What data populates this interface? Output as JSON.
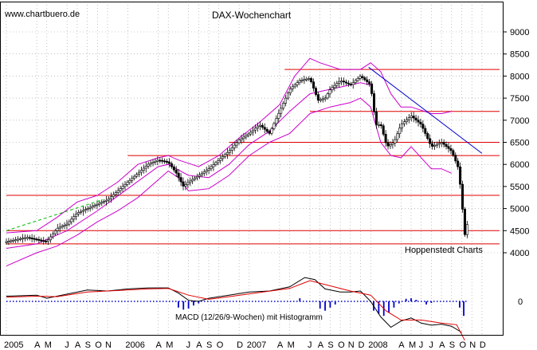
{
  "header": {
    "watermark": "www.chartbuero.de",
    "title": "DAX-Wochenchart"
  },
  "footer": {
    "source": "Hoppenstedt Charts",
    "macd_label": "MACD (12/26/9-Wochen) mit Histogramm"
  },
  "colors": {
    "price": "#000000",
    "bollinger": "#cc00cc",
    "support_resistance": "#e00000",
    "trendline": "#0000cc",
    "uptrend_dashed": "#00bb00",
    "macd": "#000000",
    "signal": "#e00000",
    "histogram": "#0000cc",
    "grid": "#999999"
  },
  "chart_data": [
    {
      "type": "candlestick",
      "title": "DAX-Wochenchart",
      "y_axis_position": "right",
      "ylim": [
        3500,
        9000
      ],
      "y_ticks": [
        4000,
        4500,
        5000,
        5500,
        6000,
        6500,
        7000,
        7500,
        8000,
        8500,
        9000
      ],
      "x_ticks": [
        {
          "label": "2005",
          "t": 0
        },
        {
          "label": "A",
          "t": 3
        },
        {
          "label": "M",
          "t": 4
        },
        {
          "label": "J",
          "t": 6
        },
        {
          "label": "A",
          "t": 7
        },
        {
          "label": "S",
          "t": 8
        },
        {
          "label": "O",
          "t": 9
        },
        {
          "label": "N",
          "t": 10
        },
        {
          "label": "2006",
          "t": 12
        },
        {
          "label": "A",
          "t": 15
        },
        {
          "label": "M",
          "t": 16
        },
        {
          "label": "J",
          "t": 18
        },
        {
          "label": "A",
          "t": 19
        },
        {
          "label": "S",
          "t": 20
        },
        {
          "label": "O",
          "t": 21
        },
        {
          "label": "D",
          "t": 23
        },
        {
          "label": "2007",
          "t": 24
        },
        {
          "label": "A",
          "t": 27
        },
        {
          "label": "M",
          "t": 28
        },
        {
          "label": "J",
          "t": 30
        },
        {
          "label": "A",
          "t": 31
        },
        {
          "label": "S",
          "t": 32
        },
        {
          "label": "O",
          "t": 33
        },
        {
          "label": "N",
          "t": 34
        },
        {
          "label": "D",
          "t": 35
        },
        {
          "label": "2008",
          "t": 36
        },
        {
          "label": "A",
          "t": 39
        },
        {
          "label": "M",
          "t": 40
        },
        {
          "label": "J",
          "t": 41
        },
        {
          "label": "J",
          "t": 42
        },
        {
          "label": "A",
          "t": 43
        },
        {
          "label": "S",
          "t": 44
        },
        {
          "label": "O",
          "t": 45
        },
        {
          "label": "N",
          "t": 46
        },
        {
          "label": "D",
          "t": 47
        }
      ],
      "price": [
        {
          "t": 0,
          "v": 4250
        },
        {
          "t": 1,
          "v": 4300
        },
        {
          "t": 2,
          "v": 4350
        },
        {
          "t": 3,
          "v": 4300
        },
        {
          "t": 4,
          "v": 4250
        },
        {
          "t": 5,
          "v": 4550
        },
        {
          "t": 6,
          "v": 4650
        },
        {
          "t": 7,
          "v": 4900
        },
        {
          "t": 8,
          "v": 5000
        },
        {
          "t": 9,
          "v": 5100
        },
        {
          "t": 10,
          "v": 5200
        },
        {
          "t": 11,
          "v": 5400
        },
        {
          "t": 12,
          "v": 5600
        },
        {
          "t": 13,
          "v": 5800
        },
        {
          "t": 14,
          "v": 6000
        },
        {
          "t": 15,
          "v": 6100
        },
        {
          "t": 16,
          "v": 6050
        },
        {
          "t": 16.8,
          "v": 5800
        },
        {
          "t": 17.5,
          "v": 5500
        },
        {
          "t": 18,
          "v": 5600
        },
        {
          "t": 19,
          "v": 5750
        },
        {
          "t": 20,
          "v": 5900
        },
        {
          "t": 21,
          "v": 6100
        },
        {
          "t": 22,
          "v": 6300
        },
        {
          "t": 23,
          "v": 6550
        },
        {
          "t": 24,
          "v": 6700
        },
        {
          "t": 25,
          "v": 6900
        },
        {
          "t": 26,
          "v": 6700
        },
        {
          "t": 27,
          "v": 7200
        },
        {
          "t": 28,
          "v": 7700
        },
        {
          "t": 29,
          "v": 7900
        },
        {
          "t": 30,
          "v": 7950
        },
        {
          "t": 30.8,
          "v": 7450
        },
        {
          "t": 31.5,
          "v": 7500
        },
        {
          "t": 32,
          "v": 7700
        },
        {
          "t": 33,
          "v": 7900
        },
        {
          "t": 34,
          "v": 7800
        },
        {
          "t": 35,
          "v": 8000
        },
        {
          "t": 36,
          "v": 7800
        },
        {
          "t": 36.5,
          "v": 6900
        },
        {
          "t": 37,
          "v": 6900
        },
        {
          "t": 37.6,
          "v": 6400
        },
        {
          "t": 38.3,
          "v": 6500
        },
        {
          "t": 39,
          "v": 6900
        },
        {
          "t": 40,
          "v": 7100
        },
        {
          "t": 41,
          "v": 6900
        },
        {
          "t": 42,
          "v": 6400
        },
        {
          "t": 43,
          "v": 6500
        },
        {
          "t": 44,
          "v": 6300
        },
        {
          "t": 44.7,
          "v": 5900
        },
        {
          "t": 45.0,
          "v": 5200
        },
        {
          "t": 45.3,
          "v": 4400
        },
        {
          "t": 45.6,
          "v": 4700
        }
      ],
      "bollinger_upper": [
        {
          "t": 0,
          "v": 4450
        },
        {
          "t": 3,
          "v": 4500
        },
        {
          "t": 5,
          "v": 4800
        },
        {
          "t": 7,
          "v": 5150
        },
        {
          "t": 9,
          "v": 5300
        },
        {
          "t": 11,
          "v": 5600
        },
        {
          "t": 13,
          "v": 6000
        },
        {
          "t": 15,
          "v": 6150
        },
        {
          "t": 16,
          "v": 6200
        },
        {
          "t": 17,
          "v": 6100
        },
        {
          "t": 19,
          "v": 5950
        },
        {
          "t": 21,
          "v": 6200
        },
        {
          "t": 23,
          "v": 6600
        },
        {
          "t": 25,
          "v": 6950
        },
        {
          "t": 27,
          "v": 7350
        },
        {
          "t": 28.5,
          "v": 8000
        },
        {
          "t": 30,
          "v": 8400
        },
        {
          "t": 31,
          "v": 8300
        },
        {
          "t": 33,
          "v": 8150
        },
        {
          "t": 35,
          "v": 8150
        },
        {
          "t": 36,
          "v": 8300
        },
        {
          "t": 37,
          "v": 8100
        },
        {
          "t": 38,
          "v": 7600
        },
        {
          "t": 39,
          "v": 7300
        },
        {
          "t": 40,
          "v": 7300
        },
        {
          "t": 42,
          "v": 7150
        },
        {
          "t": 43,
          "v": 7150
        },
        {
          "t": 44,
          "v": 7200
        }
      ],
      "bollinger_lower": [
        {
          "t": 0,
          "v": 3700
        },
        {
          "t": 3,
          "v": 4000
        },
        {
          "t": 5,
          "v": 4150
        },
        {
          "t": 7,
          "v": 4400
        },
        {
          "t": 9,
          "v": 4700
        },
        {
          "t": 11,
          "v": 4950
        },
        {
          "t": 13,
          "v": 5250
        },
        {
          "t": 15,
          "v": 5650
        },
        {
          "t": 16,
          "v": 5850
        },
        {
          "t": 17,
          "v": 5700
        },
        {
          "t": 18,
          "v": 5400
        },
        {
          "t": 20,
          "v": 5450
        },
        {
          "t": 22,
          "v": 5750
        },
        {
          "t": 24,
          "v": 6200
        },
        {
          "t": 26,
          "v": 6500
        },
        {
          "t": 28,
          "v": 6700
        },
        {
          "t": 30,
          "v": 7150
        },
        {
          "t": 32,
          "v": 7300
        },
        {
          "t": 34,
          "v": 7400
        },
        {
          "t": 35,
          "v": 7500
        },
        {
          "t": 36,
          "v": 7300
        },
        {
          "t": 37,
          "v": 6500
        },
        {
          "t": 38,
          "v": 6200
        },
        {
          "t": 39,
          "v": 6150
        },
        {
          "t": 40,
          "v": 6400
        },
        {
          "t": 41,
          "v": 6150
        },
        {
          "t": 42,
          "v": 5900
        },
        {
          "t": 43,
          "v": 5900
        },
        {
          "t": 44,
          "v": 5800
        }
      ],
      "bollinger_mid": [
        {
          "t": 0,
          "v": 4100
        },
        {
          "t": 3,
          "v": 4200
        },
        {
          "t": 6,
          "v": 4500
        },
        {
          "t": 9,
          "v": 4950
        },
        {
          "t": 12,
          "v": 5450
        },
        {
          "t": 15,
          "v": 5950
        },
        {
          "t": 16,
          "v": 6000
        },
        {
          "t": 18,
          "v": 5750
        },
        {
          "t": 20,
          "v": 5700
        },
        {
          "t": 22,
          "v": 6000
        },
        {
          "t": 24,
          "v": 6450
        },
        {
          "t": 26,
          "v": 6750
        },
        {
          "t": 28,
          "v": 7200
        },
        {
          "t": 30,
          "v": 7600
        },
        {
          "t": 32,
          "v": 7700
        },
        {
          "t": 35,
          "v": 7850
        },
        {
          "t": 36,
          "v": 7800
        }
      ],
      "horizontal_levels": [
        {
          "v": 8150,
          "t_start": 27.5
        },
        {
          "v": 7200,
          "t_start": 30
        },
        {
          "v": 6500,
          "t_start": 22
        },
        {
          "v": 6200,
          "t_start": 12
        },
        {
          "v": 5300,
          "t_start": 0
        },
        {
          "v": 4500,
          "t_start": 0
        },
        {
          "v": 4200,
          "t_start": 0
        }
      ],
      "trendline": [
        {
          "t": 35.8,
          "v": 8200
        },
        {
          "t": 47,
          "v": 6250
        }
      ],
      "uptrend_dashed": [
        {
          "t": 0,
          "v": 4500
        },
        {
          "t": 9.5,
          "v": 5200
        }
      ]
    },
    {
      "type": "line",
      "title": "MACD (12/26/9-Wochen) mit Histogramm",
      "y_axis_position": "right",
      "ylim": [
        -8,
        6
      ],
      "y_ticks": [
        0
      ],
      "series": [
        {
          "role": "macd",
          "points": [
            {
              "t": 0,
              "v": 1
            },
            {
              "t": 3,
              "v": 1.2
            },
            {
              "t": 4,
              "v": 0.6
            },
            {
              "t": 6,
              "v": 1.4
            },
            {
              "t": 8,
              "v": 2.2
            },
            {
              "t": 10,
              "v": 2.0
            },
            {
              "t": 12,
              "v": 2.4
            },
            {
              "t": 14,
              "v": 2.6
            },
            {
              "t": 16,
              "v": 2.6
            },
            {
              "t": 17,
              "v": 1.6
            },
            {
              "t": 18,
              "v": 0.2
            },
            {
              "t": 19,
              "v": 0
            },
            {
              "t": 20,
              "v": 0.6
            },
            {
              "t": 22,
              "v": 1.2
            },
            {
              "t": 24,
              "v": 1.8
            },
            {
              "t": 26,
              "v": 2.0
            },
            {
              "t": 28,
              "v": 2.8
            },
            {
              "t": 29.5,
              "v": 4.6
            },
            {
              "t": 30.5,
              "v": 4.2
            },
            {
              "t": 31.5,
              "v": 2.4
            },
            {
              "t": 33,
              "v": 1.8
            },
            {
              "t": 34,
              "v": 1.8
            },
            {
              "t": 35,
              "v": 2.0
            },
            {
              "t": 36,
              "v": 0
            },
            {
              "t": 37,
              "v": -3
            },
            {
              "t": 38,
              "v": -5
            },
            {
              "t": 39,
              "v": -3.8
            },
            {
              "t": 40,
              "v": -3.2
            },
            {
              "t": 41,
              "v": -4.2
            },
            {
              "t": 42,
              "v": -4.6
            },
            {
              "t": 43,
              "v": -4.4
            },
            {
              "t": 44,
              "v": -4.8
            },
            {
              "t": 45,
              "v": -6
            }
          ]
        },
        {
          "role": "signal",
          "points": [
            {
              "t": 0,
              "v": 0.8
            },
            {
              "t": 3,
              "v": 1.0
            },
            {
              "t": 5,
              "v": 0.9
            },
            {
              "t": 8,
              "v": 1.8
            },
            {
              "t": 11,
              "v": 2.1
            },
            {
              "t": 14,
              "v": 2.4
            },
            {
              "t": 16,
              "v": 2.5
            },
            {
              "t": 18,
              "v": 1.2
            },
            {
              "t": 20,
              "v": 0.4
            },
            {
              "t": 22,
              "v": 0.9
            },
            {
              "t": 25,
              "v": 1.7
            },
            {
              "t": 28,
              "v": 2.5
            },
            {
              "t": 30,
              "v": 4.0
            },
            {
              "t": 32,
              "v": 3.0
            },
            {
              "t": 34,
              "v": 2.0
            },
            {
              "t": 36,
              "v": 1.2
            },
            {
              "t": 37.5,
              "v": -1.8
            },
            {
              "t": 39,
              "v": -3.6
            },
            {
              "t": 41,
              "v": -3.6
            },
            {
              "t": 43,
              "v": -4.2
            },
            {
              "t": 44.5,
              "v": -4.5
            },
            {
              "t": 45.3,
              "v": -7.5
            }
          ]
        }
      ],
      "histogram": [
        {
          "t": 17,
          "v": -1.2
        },
        {
          "t": 17.5,
          "v": -1.6
        },
        {
          "t": 18,
          "v": -1.4
        },
        {
          "t": 18.5,
          "v": -0.8
        },
        {
          "t": 19,
          "v": -0.4
        },
        {
          "t": 29,
          "v": 0.6
        },
        {
          "t": 31,
          "v": -1.4
        },
        {
          "t": 31.5,
          "v": -1.8
        },
        {
          "t": 32,
          "v": -1.2
        },
        {
          "t": 32.5,
          "v": -0.6
        },
        {
          "t": 36.3,
          "v": -1.8
        },
        {
          "t": 36.8,
          "v": -2.4
        },
        {
          "t": 37.3,
          "v": -2.8
        },
        {
          "t": 37.8,
          "v": -2.2
        },
        {
          "t": 38.3,
          "v": -1.2
        },
        {
          "t": 38.8,
          "v": -0.4
        },
        {
          "t": 39.5,
          "v": 0.5
        },
        {
          "t": 40,
          "v": 0.6
        },
        {
          "t": 40.5,
          "v": 0.3
        },
        {
          "t": 41.5,
          "v": -0.6
        },
        {
          "t": 42,
          "v": -0.3
        },
        {
          "t": 44.8,
          "v": -1.2
        },
        {
          "t": 45.2,
          "v": -2.8
        }
      ]
    }
  ]
}
